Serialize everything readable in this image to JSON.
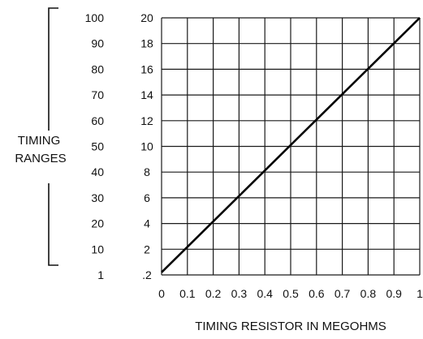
{
  "chart_data": {
    "type": "line",
    "title": "",
    "xlabel": "TIMING RESISTOR IN MEGOHMS",
    "ylabel_lines": [
      "TIMING",
      "RANGES"
    ],
    "x_ticks": [
      "0",
      "0.1",
      "0.2",
      "0.3",
      "0.4",
      "0.5",
      "0.6",
      "0.7",
      "0.8",
      "0.9",
      "1"
    ],
    "y_ticks_inner": [
      ".2",
      "2",
      "4",
      "6",
      "8",
      "10",
      "12",
      "14",
      "16",
      "18",
      "20"
    ],
    "y_ticks_outer": [
      "1",
      "10",
      "20",
      "30",
      "40",
      "50",
      "60",
      "70",
      "80",
      "90",
      "100"
    ],
    "xlim": [
      0,
      1
    ],
    "ylim": [
      0,
      20
    ],
    "grid": true,
    "series": [
      {
        "x": [
          0,
          1
        ],
        "y": [
          0.2,
          20
        ]
      }
    ]
  }
}
